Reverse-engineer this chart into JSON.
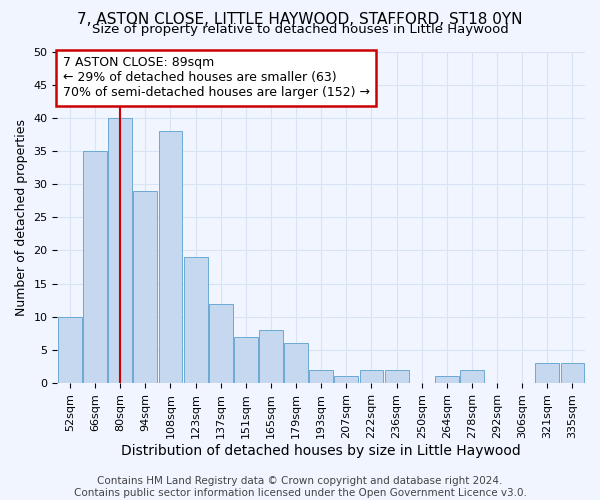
{
  "title1": "7, ASTON CLOSE, LITTLE HAYWOOD, STAFFORD, ST18 0YN",
  "title2": "Size of property relative to detached houses in Little Haywood",
  "xlabel": "Distribution of detached houses by size in Little Haywood",
  "ylabel": "Number of detached properties",
  "categories": [
    "52sqm",
    "66sqm",
    "80sqm",
    "94sqm",
    "108sqm",
    "123sqm",
    "137sqm",
    "151sqm",
    "165sqm",
    "179sqm",
    "193sqm",
    "207sqm",
    "222sqm",
    "236sqm",
    "250sqm",
    "264sqm",
    "278sqm",
    "292sqm",
    "306sqm",
    "321sqm",
    "335sqm"
  ],
  "values": [
    10,
    35,
    40,
    29,
    38,
    19,
    12,
    7,
    8,
    6,
    2,
    1,
    2,
    2,
    0,
    1,
    2,
    0,
    0,
    3,
    3
  ],
  "bar_color": "#c5d8f0",
  "bar_edge_color": "#6aaad4",
  "highlight_color": "#cc0000",
  "vline_x_index": 2,
  "annotation_line1": "7 ASTON CLOSE: 89sqm",
  "annotation_line2": "← 29% of detached houses are smaller (63)",
  "annotation_line3": "70% of semi-detached houses are larger (152) →",
  "annotation_box_facecolor": "#ffffff",
  "annotation_box_edgecolor": "#cc0000",
  "ylim": [
    0,
    50
  ],
  "yticks": [
    0,
    5,
    10,
    15,
    20,
    25,
    30,
    35,
    40,
    45,
    50
  ],
  "background_color": "#f0f5ff",
  "grid_color": "#d8e4f5",
  "title1_fontsize": 11,
  "title2_fontsize": 9.5,
  "xlabel_fontsize": 10,
  "ylabel_fontsize": 9,
  "tick_fontsize": 8,
  "annotation_fontsize": 9,
  "footer_fontsize": 7.5,
  "footer1": "Contains HM Land Registry data © Crown copyright and database right 2024.",
  "footer2": "Contains public sector information licensed under the Open Government Licence v3.0."
}
